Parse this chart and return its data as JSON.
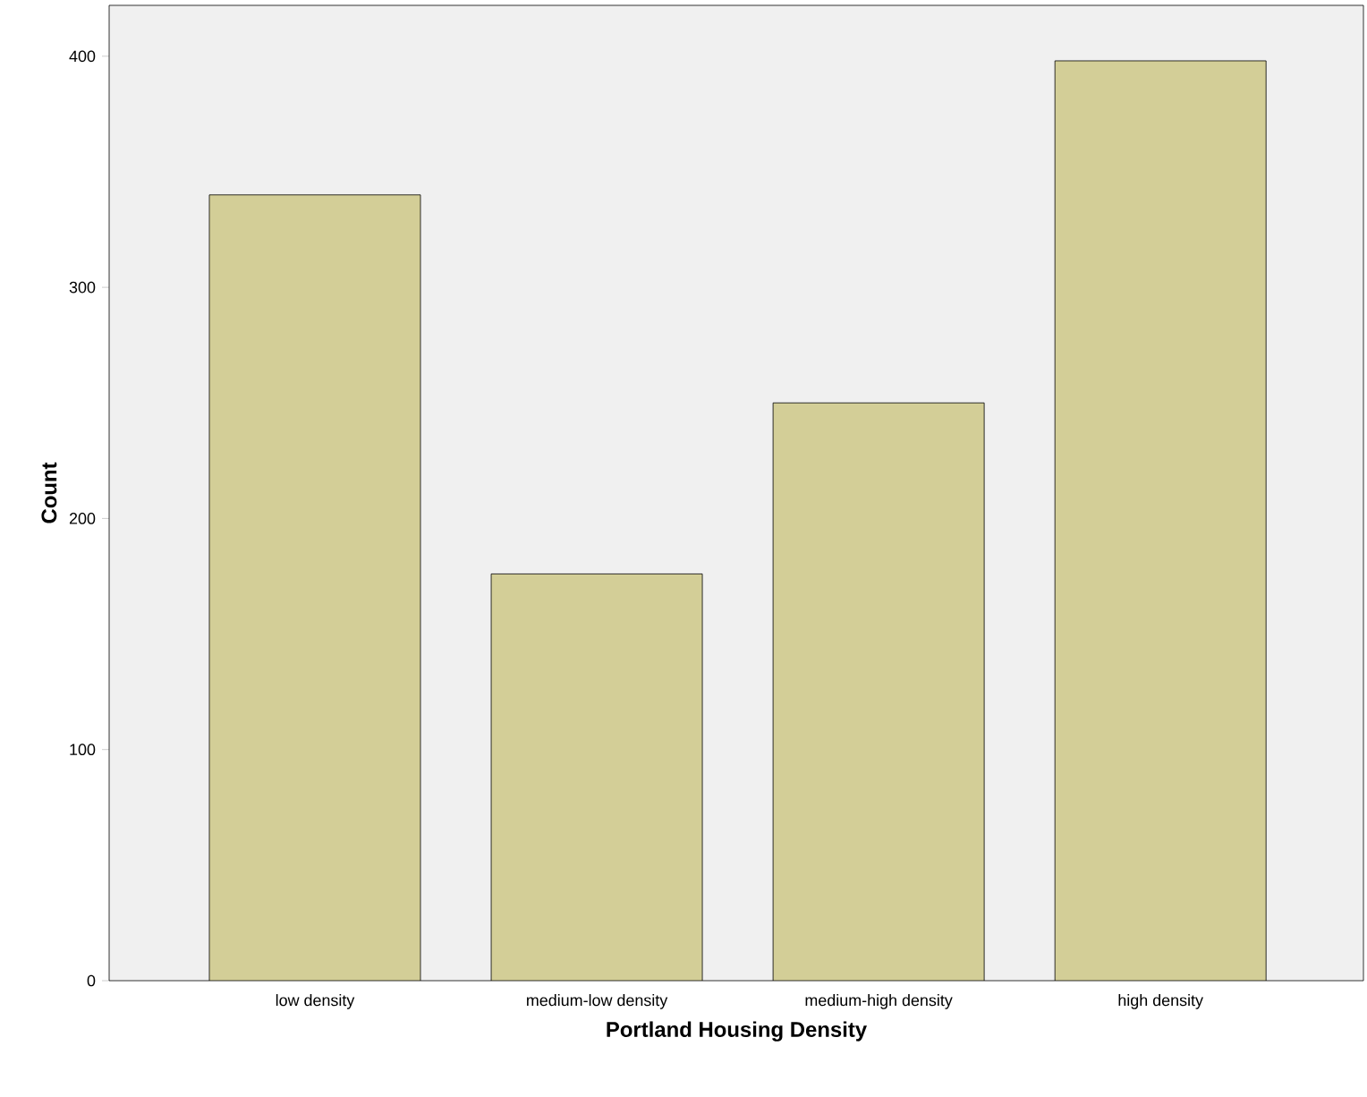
{
  "chart_data": {
    "type": "bar",
    "xlabel": "Portland Housing Density",
    "ylabel": "Count",
    "categories": [
      "low density",
      "medium-low density",
      "medium-high density",
      "high density"
    ],
    "values": [
      340,
      176,
      250,
      398
    ],
    "color": "#d3ce97",
    "ylim": [
      0,
      422
    ],
    "yticks": [
      0,
      100,
      200,
      300,
      400
    ],
    "grid": false
  }
}
